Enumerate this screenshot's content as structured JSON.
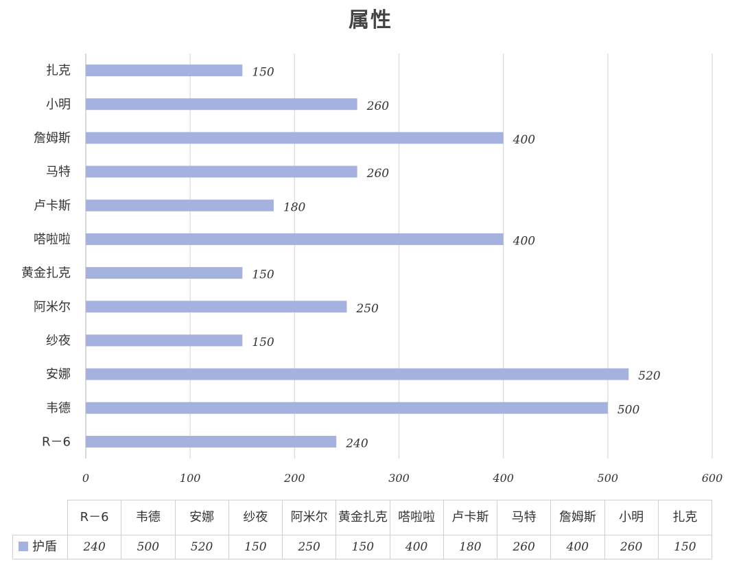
{
  "chart_data": {
    "type": "bar",
    "orientation": "horizontal",
    "title": "属性",
    "categories": [
      "R－6",
      "韦德",
      "安娜",
      "纱夜",
      "阿米尔",
      "黄金扎克",
      "嗒啦啦",
      "卢卡斯",
      "马特",
      "詹姆斯",
      "小明",
      "扎克"
    ],
    "series": [
      {
        "name": "护盾",
        "values": [
          240,
          500,
          520,
          150,
          250,
          150,
          400,
          180,
          260,
          400,
          260,
          150
        ],
        "color": "#a5b1de"
      }
    ],
    "xlim": [
      0,
      600
    ],
    "xticks": [
      0,
      100,
      200,
      300,
      400,
      500,
      600
    ],
    "grid": "vertical",
    "data_labels": true,
    "legend": "data-table-left"
  }
}
